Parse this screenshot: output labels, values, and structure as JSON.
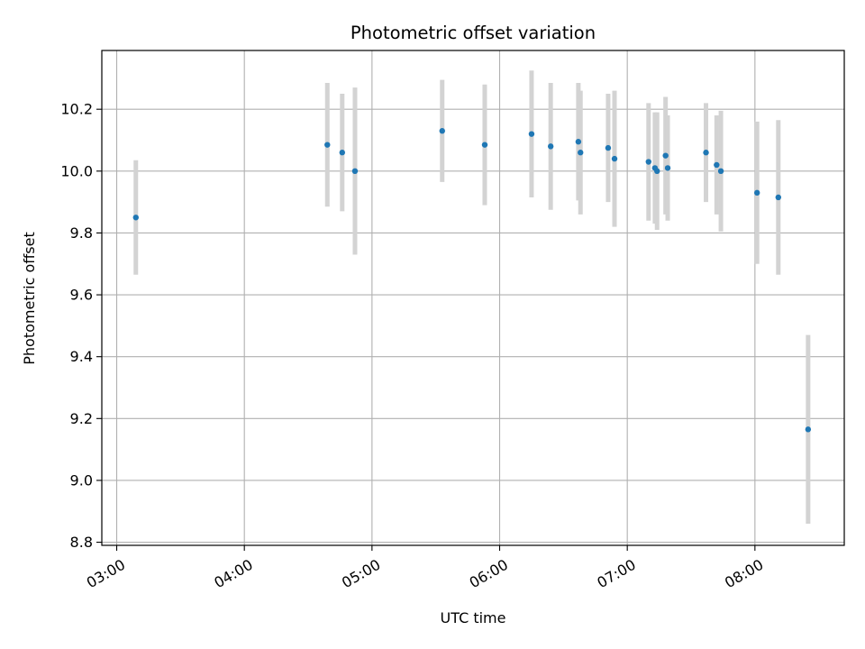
{
  "chart_data": {
    "type": "scatter",
    "title": "Photometric offset variation",
    "xlabel": "UTC time",
    "ylabel": "Photometric offset",
    "x_ticks": [
      "03:00",
      "04:00",
      "05:00",
      "06:00",
      "07:00",
      "08:00"
    ],
    "y_ticks": [
      "8.8",
      "9.0",
      "9.2",
      "9.4",
      "9.6",
      "9.8",
      "10.0",
      "10.2"
    ],
    "xlim": [
      "02:53",
      "08:42"
    ],
    "ylim": [
      8.79,
      10.39
    ],
    "grid": true,
    "colors": {
      "points": "#1f77b4",
      "errorbars": "#d3d3d3",
      "grid": "#b0b0b0"
    },
    "points": [
      {
        "x": "03:09",
        "y": 9.85,
        "err": 0.185
      },
      {
        "x": "04:39",
        "y": 10.085,
        "err": 0.2
      },
      {
        "x": "04:46",
        "y": 10.06,
        "err": 0.19
      },
      {
        "x": "04:52",
        "y": 10.0,
        "err": 0.27
      },
      {
        "x": "05:33",
        "y": 10.13,
        "err": 0.165
      },
      {
        "x": "05:53",
        "y": 10.085,
        "err": 0.195
      },
      {
        "x": "06:15",
        "y": 10.12,
        "err": 0.205
      },
      {
        "x": "06:24",
        "y": 10.08,
        "err": 0.205
      },
      {
        "x": "06:37",
        "y": 10.095,
        "err": 0.19
      },
      {
        "x": "06:38",
        "y": 10.06,
        "err": 0.2
      },
      {
        "x": "06:51",
        "y": 10.075,
        "err": 0.175
      },
      {
        "x": "06:54",
        "y": 10.04,
        "err": 0.22
      },
      {
        "x": "07:10",
        "y": 10.03,
        "err": 0.19
      },
      {
        "x": "07:13",
        "y": 10.01,
        "err": 0.18
      },
      {
        "x": "07:14",
        "y": 10.0,
        "err": 0.19
      },
      {
        "x": "07:18",
        "y": 10.05,
        "err": 0.19
      },
      {
        "x": "07:19",
        "y": 10.01,
        "err": 0.17
      },
      {
        "x": "07:37",
        "y": 10.06,
        "err": 0.16
      },
      {
        "x": "07:42",
        "y": 10.02,
        "err": 0.16
      },
      {
        "x": "07:44",
        "y": 10.0,
        "err": 0.195
      },
      {
        "x": "08:01",
        "y": 9.93,
        "err": 0.23
      },
      {
        "x": "08:11",
        "y": 9.915,
        "err": 0.25
      },
      {
        "x": "08:25",
        "y": 9.165,
        "err": 0.305
      }
    ]
  }
}
